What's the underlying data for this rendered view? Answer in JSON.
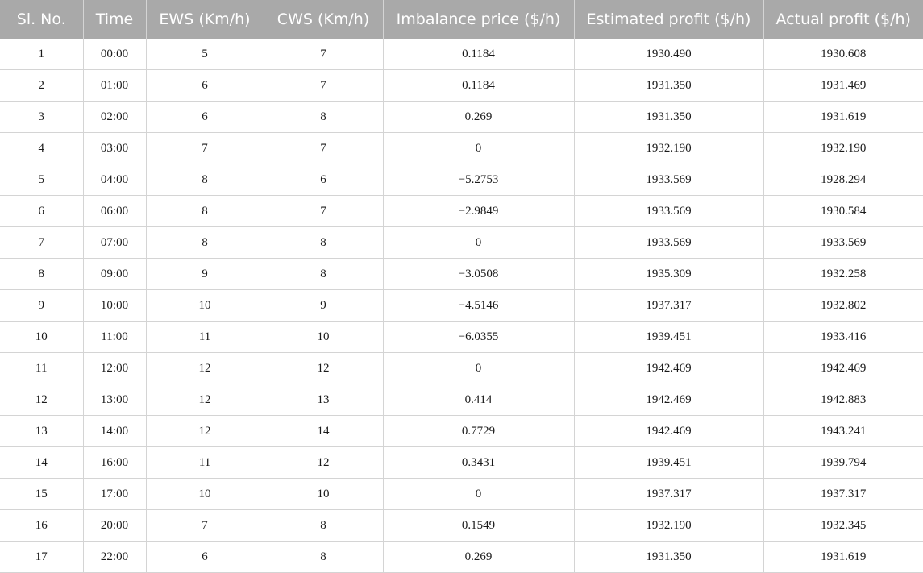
{
  "table": {
    "headers": [
      "Sl. No.",
      "Time",
      "EWS (Km/h)",
      "CWS (Km/h)",
      "Imbalance price ($/h)",
      "Estimated profit ($/h)",
      "Actual profit ($/h)"
    ],
    "rows": [
      [
        "1",
        "00:00",
        "5",
        "7",
        "0.1184",
        "1930.490",
        "1930.608"
      ],
      [
        "2",
        "01:00",
        "6",
        "7",
        "0.1184",
        "1931.350",
        "1931.469"
      ],
      [
        "3",
        "02:00",
        "6",
        "8",
        "0.269",
        "1931.350",
        "1931.619"
      ],
      [
        "4",
        "03:00",
        "7",
        "7",
        "0",
        "1932.190",
        "1932.190"
      ],
      [
        "5",
        "04:00",
        "8",
        "6",
        "−5.2753",
        "1933.569",
        "1928.294"
      ],
      [
        "6",
        "06:00",
        "8",
        "7",
        "−2.9849",
        "1933.569",
        "1930.584"
      ],
      [
        "7",
        "07:00",
        "8",
        "8",
        "0",
        "1933.569",
        "1933.569"
      ],
      [
        "8",
        "09:00",
        "9",
        "8",
        "−3.0508",
        "1935.309",
        "1932.258"
      ],
      [
        "9",
        "10:00",
        "10",
        "9",
        "−4.5146",
        "1937.317",
        "1932.802"
      ],
      [
        "10",
        "11:00",
        "11",
        "10",
        "−6.0355",
        "1939.451",
        "1933.416"
      ],
      [
        "11",
        "12:00",
        "12",
        "12",
        "0",
        "1942.469",
        "1942.469"
      ],
      [
        "12",
        "13:00",
        "12",
        "13",
        "0.414",
        "1942.469",
        "1942.883"
      ],
      [
        "13",
        "14:00",
        "12",
        "14",
        "0.7729",
        "1942.469",
        "1943.241"
      ],
      [
        "14",
        "16:00",
        "11",
        "12",
        "0.3431",
        "1939.451",
        "1939.794"
      ],
      [
        "15",
        "17:00",
        "10",
        "10",
        "0",
        "1937.317",
        "1937.317"
      ],
      [
        "16",
        "20:00",
        "7",
        "8",
        "0.1549",
        "1932.190",
        "1932.345"
      ],
      [
        "17",
        "22:00",
        "6",
        "8",
        "0.269",
        "1931.350",
        "1931.619"
      ]
    ]
  }
}
